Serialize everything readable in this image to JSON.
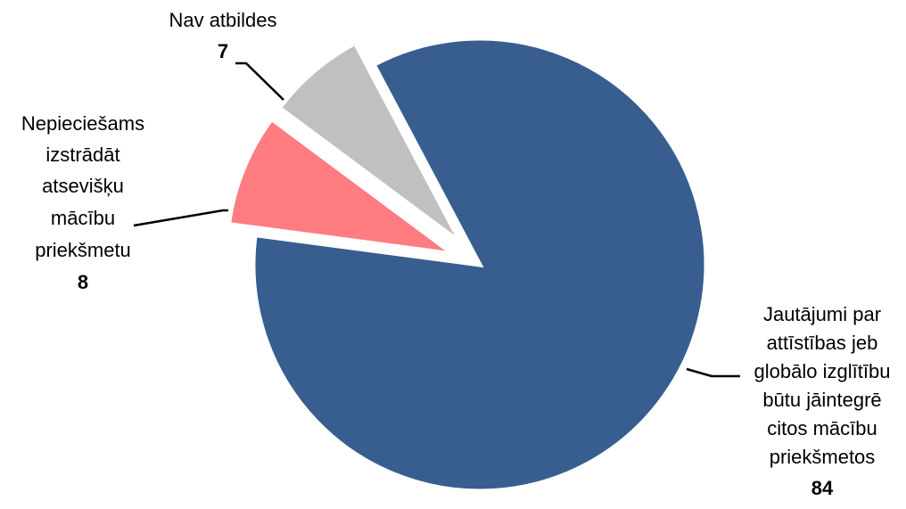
{
  "chart_data": {
    "type": "pie",
    "title": "",
    "legend": "none",
    "slices": [
      {
        "label_lines": [
          "Jautājumi par",
          "attīstības jeb",
          "globālo izglītību",
          "būtu jāintegrē",
          "citos mācību",
          "priekšmetos"
        ],
        "value": 84,
        "value_text": "84",
        "color": "#375E8F"
      },
      {
        "label_lines": [
          "Nepieciešams",
          "izstrādāt",
          "atsevišķu",
          "mācību",
          "priekšmetu"
        ],
        "value": 8,
        "value_text": "8",
        "color": "#FF7C80"
      },
      {
        "label_lines": [
          "Nav atbildes"
        ],
        "value": 7,
        "value_text": "7",
        "color": "#C0C0C0"
      }
    ]
  }
}
